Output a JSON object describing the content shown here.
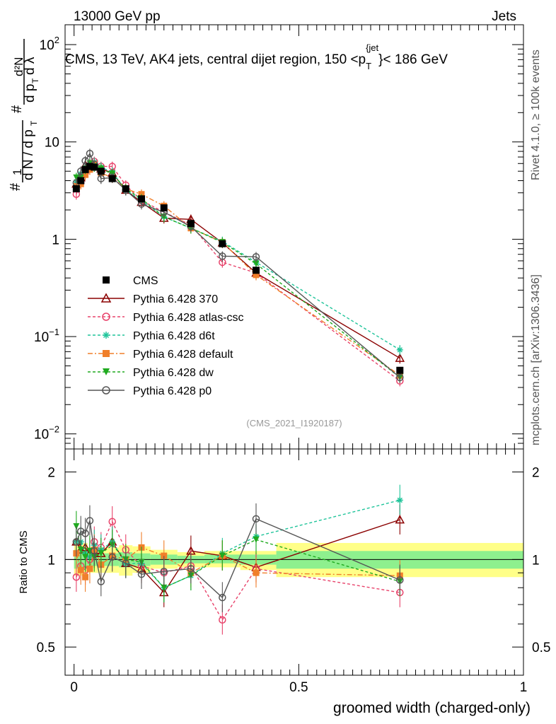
{
  "header": {
    "energy": "13000 GeV pp",
    "category": "Jets"
  },
  "side_labels": {
    "rivet": "Rivet 4.1.0, ≥ 100k events",
    "site": "mcplots.cern.ch [arXiv:1306.3436]"
  },
  "reference": "(CMS_2021_I1920187)",
  "chart_data": [
    {
      "type": "line",
      "title": "CMS, 13 TeV, AK4 jets, central dijet region, 150 <p_T^{jet}< 186 GeV",
      "title_parts": {
        "main": "CMS, 13 TeV, AK4 jets, central dijet region, 150 <p",
        "sub": "T",
        "sup": "{jet",
        "tail": "}< 186 GeV"
      },
      "ylabel": "1/dN/dpT d²N/dpT dλ",
      "yscale": "log",
      "ylim": [
        0.007,
        160
      ],
      "xlim": [
        -0.02,
        1.0
      ],
      "yticks": [
        {
          "v": 0.01,
          "base": "10",
          "exp": "−2"
        },
        {
          "v": 0.1,
          "base": "10",
          "exp": "−1"
        },
        {
          "v": 1,
          "label": "1"
        },
        {
          "v": 10,
          "label": "10"
        },
        {
          "v": 100,
          "base": "10",
          "exp": "2"
        }
      ],
      "x": [
        0.005,
        0.015,
        0.025,
        0.035,
        0.045,
        0.06,
        0.085,
        0.115,
        0.15,
        0.2,
        0.26,
        0.33,
        0.405,
        0.725
      ],
      "series": [
        {
          "name": "CMS",
          "color": "#000000",
          "marker": "square-filled",
          "dash": "none",
          "values": [
            3.3,
            4.0,
            5.2,
            5.6,
            5.5,
            5.0,
            4.2,
            3.3,
            2.6,
            2.1,
            1.45,
            0.9,
            0.48,
            0.045
          ]
        },
        {
          "name": "Pythia 6.428 370",
          "color": "#8b0000",
          "marker": "triangle-open",
          "dash": "none",
          "values": [
            3.7,
            4.3,
            5.8,
            5.9,
            5.8,
            5.3,
            4.8,
            3.2,
            2.4,
            1.65,
            1.6,
            0.92,
            0.45,
            0.06
          ]
        },
        {
          "name": "Pythia 6.428 atlas-csc",
          "color": "#e8436b",
          "marker": "circle-open",
          "dash": "4,3",
          "values": [
            2.9,
            3.8,
            4.8,
            5.5,
            6.3,
            5.6,
            5.6,
            3.6,
            2.5,
            1.9,
            1.4,
            0.58,
            0.45,
            0.035
          ]
        },
        {
          "name": "Pythia 6.428 d6t",
          "color": "#1fc49a",
          "marker": "star",
          "dash": "4,3",
          "values": [
            3.9,
            4.7,
            5.5,
            5.7,
            6.2,
            5.5,
            4.9,
            3.2,
            2.5,
            1.7,
            1.3,
            0.95,
            0.58,
            0.073
          ]
        },
        {
          "name": "Pythia 6.428 default",
          "color": "#f07f2a",
          "marker": "square-filled",
          "dash": "7,3,2,3",
          "values": [
            3.5,
            3.7,
            4.6,
            5.2,
            5.9,
            4.8,
            4.3,
            3.3,
            2.9,
            2.2,
            1.3,
            0.93,
            0.43,
            0.04
          ]
        },
        {
          "name": "Pythia 6.428 dw",
          "color": "#1faa1f",
          "marker": "triangle-down-filled",
          "dash": "4,3",
          "values": [
            4.3,
            4.3,
            5.3,
            6.0,
            5.6,
            5.3,
            4.7,
            3.3,
            2.6,
            1.7,
            1.3,
            0.93,
            0.56,
            0.038
          ]
        },
        {
          "name": "Pythia 6.428 p0",
          "color": "#555555",
          "marker": "circle-open",
          "dash": "none",
          "values": [
            3.8,
            5.0,
            6.4,
            7.6,
            5.9,
            4.2,
            4.3,
            3.2,
            2.3,
            1.9,
            1.35,
            0.67,
            0.66,
            0.038
          ]
        }
      ]
    },
    {
      "type": "line",
      "title": "",
      "ylabel": "Ratio to CMS",
      "xlabel": "groomed width (charged-only)",
      "yscale": "log",
      "ylim": [
        0.4,
        2.4
      ],
      "xlim": [
        -0.02,
        1.0
      ],
      "yticks": [
        {
          "v": 0.5,
          "label": "0.5"
        },
        {
          "v": 1,
          "label": "1"
        },
        {
          "v": 2,
          "label": "2"
        }
      ],
      "xticks": [
        {
          "v": 0,
          "label": "0"
        },
        {
          "v": 0.5,
          "label": "0.5"
        },
        {
          "v": 1,
          "label": "1"
        }
      ],
      "bands": [
        {
          "x0": 0.0,
          "x1": 0.03,
          "inner": [
            0.93,
            1.08
          ],
          "outer": [
            0.88,
            1.14
          ]
        },
        {
          "x0": 0.03,
          "x1": 0.1,
          "inner": [
            0.95,
            1.05
          ],
          "outer": [
            0.9,
            1.1
          ]
        },
        {
          "x0": 0.1,
          "x1": 0.13,
          "inner": [
            0.94,
            1.06
          ],
          "outer": [
            0.88,
            1.12
          ]
        },
        {
          "x0": 0.13,
          "x1": 0.17,
          "inner": [
            0.95,
            1.05
          ],
          "outer": [
            0.9,
            1.11
          ]
        },
        {
          "x0": 0.17,
          "x1": 0.23,
          "inner": [
            0.96,
            1.04
          ],
          "outer": [
            0.93,
            1.08
          ]
        },
        {
          "x0": 0.23,
          "x1": 0.29,
          "inner": [
            0.97,
            1.03
          ],
          "outer": [
            0.94,
            1.06
          ]
        },
        {
          "x0": 0.29,
          "x1": 0.37,
          "inner": [
            0.97,
            1.04
          ],
          "outer": [
            0.94,
            1.07
          ]
        },
        {
          "x0": 0.37,
          "x1": 0.45,
          "inner": [
            0.96,
            1.04
          ],
          "outer": [
            0.92,
            1.07
          ]
        },
        {
          "x0": 0.45,
          "x1": 1.0,
          "inner": [
            0.93,
            1.07
          ],
          "outer": [
            0.87,
            1.14
          ]
        }
      ],
      "series": [
        {
          "name": "Pythia 6.428 370",
          "values": [
            1.15,
            1.08,
            1.1,
            1.05,
            1.05,
            1.05,
            1.15,
            0.97,
            0.93,
            0.77,
            1.07,
            1.03,
            0.94,
            1.37
          ]
        },
        {
          "name": "Pythia 6.428 atlas-csc",
          "values": [
            0.87,
            0.95,
            0.92,
            1.0,
            1.15,
            1.1,
            1.35,
            1.08,
            0.95,
            0.9,
            0.95,
            0.62,
            0.93,
            0.77
          ]
        },
        {
          "name": "Pythia 6.428 d6t",
          "values": [
            1.15,
            1.15,
            1.05,
            1.02,
            1.12,
            1.08,
            1.15,
            0.97,
            0.97,
            0.8,
            0.88,
            1.05,
            1.2,
            1.6
          ]
        },
        {
          "name": "Pythia 6.428 default",
          "values": [
            1.05,
            0.92,
            0.87,
            0.93,
            1.08,
            0.96,
            1.03,
            1.0,
            1.1,
            1.03,
            0.9,
            1.03,
            0.9,
            0.88
          ]
        },
        {
          "name": "Pythia 6.428 dw",
          "values": [
            1.3,
            1.08,
            1.02,
            1.07,
            1.02,
            1.05,
            1.12,
            1.0,
            0.98,
            0.8,
            0.88,
            1.03,
            1.17,
            0.84
          ]
        },
        {
          "name": "Pythia 6.428 p0",
          "values": [
            1.15,
            1.25,
            1.23,
            1.36,
            1.07,
            0.84,
            1.02,
            0.97,
            0.89,
            0.91,
            0.93,
            0.74,
            1.38,
            0.85
          ]
        }
      ]
    }
  ]
}
